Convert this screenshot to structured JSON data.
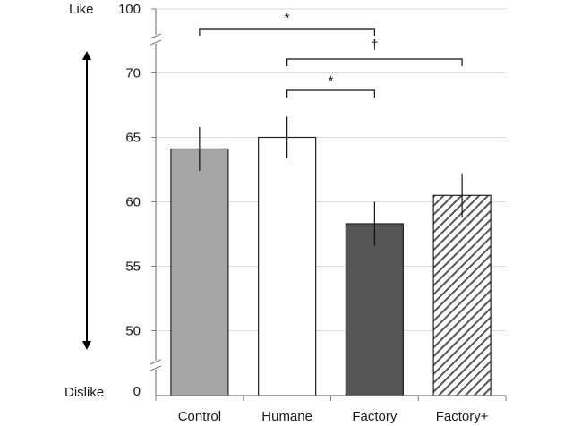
{
  "chart_data": {
    "type": "bar",
    "categories": [
      "Control",
      "Humane",
      "Factory",
      "Factory+"
    ],
    "values": [
      64.1,
      65.0,
      58.3,
      60.5
    ],
    "errors": [
      1.7,
      1.6,
      1.7,
      1.7
    ],
    "bar_styles": [
      {
        "fill": "#a6a6a6",
        "pattern": "solid"
      },
      {
        "fill": "#ffffff",
        "pattern": "solid"
      },
      {
        "fill": "#555555",
        "pattern": "solid"
      },
      {
        "fill": "#ffffff",
        "pattern": "diagonal-hatch",
        "hatch_color": "#555555"
      }
    ],
    "ylim": [
      45,
      72.5
    ],
    "axis_break": true,
    "yticks": [
      {
        "value": 50,
        "label": "50"
      },
      {
        "value": 55,
        "label": "55"
      },
      {
        "value": 60,
        "label": "60"
      },
      {
        "value": 65,
        "label": "65"
      },
      {
        "value": 70,
        "label": "70"
      }
    ],
    "broken_ticks": [
      {
        "position": "top",
        "label": "100"
      },
      {
        "position": "bottom",
        "label": "0"
      }
    ],
    "side_labels": {
      "top": "Like",
      "bottom": "Dislike"
    },
    "grid": true,
    "significance": [
      {
        "from": 0,
        "to": 2,
        "label": "*"
      },
      {
        "from": 1,
        "to": 3,
        "label": "†"
      },
      {
        "from": 1,
        "to": 2,
        "label": "*"
      }
    ],
    "colors": {
      "axis": "#808080",
      "grid": "#d9d9d9",
      "bar_edge": "#222222",
      "text": "#1a1a1a"
    }
  }
}
